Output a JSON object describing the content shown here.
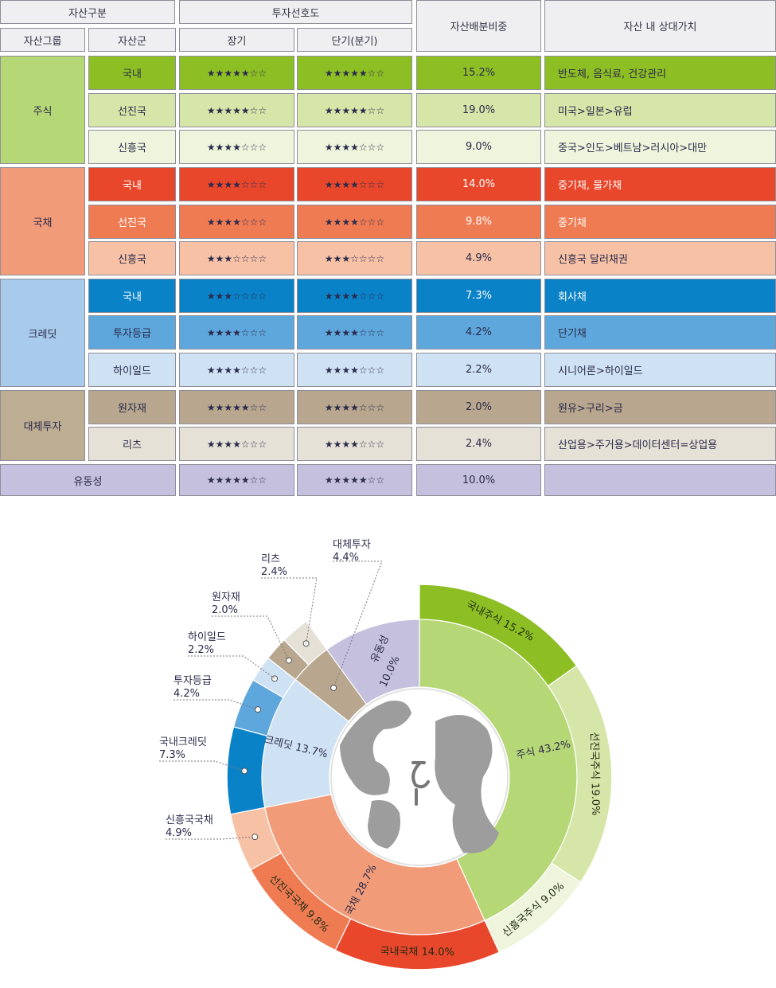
{
  "colors": {
    "grid_border": "#8e8e9a",
    "header_bg": "#efeff1",
    "stock": [
      "#8dbf24",
      "#d6e6a8",
      "#eef5dc",
      "#b6d775"
    ],
    "bond": [
      "#e9472c",
      "#ef7b53",
      "#f7c1a6",
      "#f29b79"
    ],
    "credit": [
      "#0a82c8",
      "#5ea7dc",
      "#cfe2f3",
      "#a9cbeb"
    ],
    "alt": [
      "#b8a78e",
      "#e6e1d6",
      "#bcad93"
    ],
    "liquidity": "#c5c0de",
    "center": "#9d9d9d"
  },
  "table": {
    "headers": {
      "classification": "자산구분",
      "asset_group": "자산그룹",
      "asset_class": "자산군",
      "preference": "투자선호도",
      "long_term": "장기",
      "short_term": "단기(분기)",
      "weight": "자산배분비중",
      "relative_value": "자산 내 상대가치"
    },
    "groups": [
      "주식",
      "국채",
      "크레딧",
      "대체투자"
    ],
    "rows": [
      {
        "asset": "국내",
        "long": "★★★★★☆☆",
        "short": "★★★★★☆☆",
        "weight": "15.2%",
        "value": "반도체, 음식료, 건강관리"
      },
      {
        "asset": "선진국",
        "long": "★★★★★☆☆",
        "short": "★★★★★☆☆",
        "weight": "19.0%",
        "value": "미국>일본>유럽"
      },
      {
        "asset": "신흥국",
        "long": "★★★★☆☆☆",
        "short": "★★★★☆☆☆",
        "weight": "9.0%",
        "value": "중국>인도>베트남>러시아>대만"
      },
      {
        "asset": "국내",
        "long": "★★★★☆☆☆",
        "short": "★★★★☆☆☆",
        "weight": "14.0%",
        "value": "중기채, 물가채"
      },
      {
        "asset": "선진국",
        "long": "★★★★☆☆☆",
        "short": "★★★★☆☆☆",
        "weight": "9.8%",
        "value": "중기채"
      },
      {
        "asset": "신흥국",
        "long": "★★★☆☆☆☆",
        "short": "★★★☆☆☆☆",
        "weight": "4.9%",
        "value": "신흥국 달러채권"
      },
      {
        "asset": "국내",
        "long": "★★★☆☆☆☆",
        "short": "★★★★☆☆☆",
        "weight": "7.3%",
        "value": "회사채"
      },
      {
        "asset": "투자등급",
        "long": "★★★★☆☆☆",
        "short": "★★★★☆☆☆",
        "weight": "4.2%",
        "value": "단기채"
      },
      {
        "asset": "하이일드",
        "long": "★★★★☆☆☆",
        "short": "★★★★☆☆☆",
        "weight": "2.2%",
        "value": "시니어론>하이일드"
      },
      {
        "asset": "원자재",
        "long": "★★★★★☆☆",
        "short": "★★★★☆☆☆",
        "weight": "2.0%",
        "value": "원유>구리>금"
      },
      {
        "asset": "리츠",
        "long": "★★★★☆☆☆",
        "short": "★★★★☆☆☆",
        "weight": "2.4%",
        "value": "산업용>주거용>데이터센터=상업용"
      }
    ],
    "liquidity": {
      "label": "유동성",
      "long": "★★★★★☆☆",
      "short": "★★★★★☆☆",
      "weight": "10.0%",
      "value": ""
    }
  },
  "chart_data": {
    "type": "pie",
    "inner_ring": [
      {
        "label": "주식",
        "value": 43.2,
        "text": "주식 43.2%"
      },
      {
        "label": "국채",
        "value": 28.7,
        "text": "국채 28.7%"
      },
      {
        "label": "크레딧",
        "value": 13.7,
        "text": "크레딧 13.7%"
      },
      {
        "label": "대체투자",
        "value": 4.4
      },
      {
        "label": "유동성",
        "value": 10.0,
        "text": "유동성",
        "text2": "10.0%"
      }
    ],
    "outer_ring": [
      {
        "label": "국내주식",
        "value": 15.2,
        "text": "국내주식 15.2%"
      },
      {
        "label": "선진국주식",
        "value": 19.0,
        "text": "선진국주식 19.0%"
      },
      {
        "label": "신흥국주식",
        "value": 9.0,
        "text": "신흥국주식 9.0%"
      },
      {
        "label": "국내국채",
        "value": 14.0,
        "text": "국내국채 14.0%"
      },
      {
        "label": "선진국국채",
        "value": 9.8,
        "text": "선진국국채 9.8%"
      },
      {
        "label": "신흥국국채",
        "value": 4.9
      },
      {
        "label": "국내크레딧",
        "value": 7.3
      },
      {
        "label": "투자등급",
        "value": 4.2
      },
      {
        "label": "하이일드",
        "value": 2.2
      },
      {
        "label": "원자재",
        "value": 2.0
      },
      {
        "label": "리츠",
        "value": 2.4
      }
    ],
    "callouts": [
      {
        "name": "신흥국국채",
        "value": "4.9%"
      },
      {
        "name": "국내크레딧",
        "value": "7.3%"
      },
      {
        "name": "투자등급",
        "value": "4.2%"
      },
      {
        "name": "하이일드",
        "value": "2.2%"
      },
      {
        "name": "원자재",
        "value": "2.0%"
      },
      {
        "name": "리츠",
        "value": "2.4%"
      },
      {
        "name": "대체투자",
        "value": "4.4%"
      }
    ]
  }
}
